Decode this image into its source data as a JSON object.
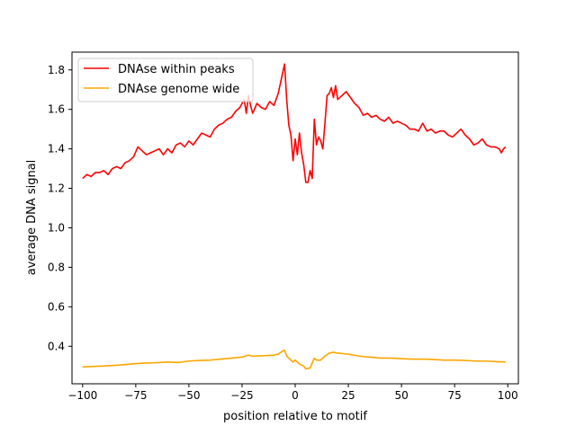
{
  "chart_data": {
    "type": "line",
    "title": "",
    "xlabel": "position relative to motif",
    "ylabel": "average DNA signal",
    "xlim": [
      -105,
      105
    ],
    "ylim": [
      0.21,
      1.89
    ],
    "x_ticks": [
      -100,
      -75,
      -50,
      -25,
      0,
      25,
      50,
      75,
      100
    ],
    "x_tick_labels": [
      "−100",
      "−75",
      "−50",
      "−25",
      "0",
      "25",
      "50",
      "75",
      "100"
    ],
    "y_ticks": [
      0.4,
      0.6,
      0.8,
      1.0,
      1.2,
      1.4,
      1.6,
      1.8
    ],
    "y_tick_labels": [
      "0.4",
      "0.6",
      "0.8",
      "1.0",
      "1.2",
      "1.4",
      "1.6",
      "1.8"
    ],
    "grid": false,
    "legend_position": "top-left",
    "series": [
      {
        "name": "DNAse within peaks",
        "color": "#ff0000",
        "points": [
          [
            -100,
            1.25
          ],
          [
            -98,
            1.27
          ],
          [
            -96,
            1.26
          ],
          [
            -94,
            1.28
          ],
          [
            -92,
            1.28
          ],
          [
            -90,
            1.29
          ],
          [
            -88,
            1.27
          ],
          [
            -86,
            1.3
          ],
          [
            -84,
            1.31
          ],
          [
            -82,
            1.3
          ],
          [
            -80,
            1.33
          ],
          [
            -78,
            1.34
          ],
          [
            -76,
            1.36
          ],
          [
            -74,
            1.41
          ],
          [
            -72,
            1.39
          ],
          [
            -70,
            1.37
          ],
          [
            -68,
            1.38
          ],
          [
            -66,
            1.39
          ],
          [
            -64,
            1.4
          ],
          [
            -62,
            1.37
          ],
          [
            -60,
            1.4
          ],
          [
            -58,
            1.38
          ],
          [
            -56,
            1.42
          ],
          [
            -54,
            1.43
          ],
          [
            -52,
            1.41
          ],
          [
            -50,
            1.44
          ],
          [
            -48,
            1.42
          ],
          [
            -46,
            1.45
          ],
          [
            -44,
            1.48
          ],
          [
            -42,
            1.47
          ],
          [
            -40,
            1.46
          ],
          [
            -38,
            1.5
          ],
          [
            -36,
            1.52
          ],
          [
            -34,
            1.53
          ],
          [
            -32,
            1.55
          ],
          [
            -30,
            1.56
          ],
          [
            -28,
            1.59
          ],
          [
            -26,
            1.61
          ],
          [
            -24,
            1.65
          ],
          [
            -23,
            1.58
          ],
          [
            -22,
            1.67
          ],
          [
            -21,
            1.62
          ],
          [
            -20,
            1.58
          ],
          [
            -18,
            1.63
          ],
          [
            -16,
            1.61
          ],
          [
            -14,
            1.6
          ],
          [
            -12,
            1.64
          ],
          [
            -10,
            1.62
          ],
          [
            -8,
            1.68
          ],
          [
            -6,
            1.78
          ],
          [
            -5,
            1.83
          ],
          [
            -4,
            1.65
          ],
          [
            -3,
            1.52
          ],
          [
            -2,
            1.47
          ],
          [
            -1,
            1.34
          ],
          [
            0,
            1.45
          ],
          [
            1,
            1.37
          ],
          [
            2,
            1.48
          ],
          [
            3,
            1.38
          ],
          [
            4,
            1.32
          ],
          [
            5,
            1.23
          ],
          [
            6,
            1.23
          ],
          [
            7,
            1.29
          ],
          [
            8,
            1.25
          ],
          [
            9,
            1.55
          ],
          [
            10,
            1.42
          ],
          [
            11,
            1.46
          ],
          [
            12,
            1.44
          ],
          [
            13,
            1.4
          ],
          [
            14,
            1.53
          ],
          [
            15,
            1.67
          ],
          [
            16,
            1.68
          ],
          [
            17,
            1.71
          ],
          [
            18,
            1.66
          ],
          [
            19,
            1.72
          ],
          [
            20,
            1.65
          ],
          [
            22,
            1.67
          ],
          [
            24,
            1.69
          ],
          [
            26,
            1.66
          ],
          [
            28,
            1.63
          ],
          [
            30,
            1.61
          ],
          [
            32,
            1.57
          ],
          [
            34,
            1.58
          ],
          [
            36,
            1.56
          ],
          [
            38,
            1.57
          ],
          [
            40,
            1.55
          ],
          [
            42,
            1.54
          ],
          [
            44,
            1.56
          ],
          [
            46,
            1.53
          ],
          [
            48,
            1.54
          ],
          [
            50,
            1.53
          ],
          [
            52,
            1.52
          ],
          [
            54,
            1.5
          ],
          [
            56,
            1.5
          ],
          [
            58,
            1.49
          ],
          [
            60,
            1.53
          ],
          [
            62,
            1.49
          ],
          [
            64,
            1.5
          ],
          [
            66,
            1.48
          ],
          [
            68,
            1.49
          ],
          [
            70,
            1.49
          ],
          [
            72,
            1.47
          ],
          [
            74,
            1.46
          ],
          [
            76,
            1.48
          ],
          [
            78,
            1.5
          ],
          [
            80,
            1.47
          ],
          [
            82,
            1.45
          ],
          [
            84,
            1.42
          ],
          [
            86,
            1.43
          ],
          [
            88,
            1.45
          ],
          [
            90,
            1.42
          ],
          [
            92,
            1.41
          ],
          [
            94,
            1.41
          ],
          [
            96,
            1.4
          ],
          [
            97,
            1.38
          ],
          [
            98,
            1.4
          ],
          [
            99,
            1.41
          ]
        ]
      },
      {
        "name": "DNAse genome wide",
        "color": "#ffa500",
        "points": [
          [
            -100,
            0.295
          ],
          [
            -95,
            0.298
          ],
          [
            -90,
            0.3
          ],
          [
            -85,
            0.303
          ],
          [
            -80,
            0.307
          ],
          [
            -75,
            0.312
          ],
          [
            -70,
            0.315
          ],
          [
            -65,
            0.317
          ],
          [
            -60,
            0.32
          ],
          [
            -55,
            0.318
          ],
          [
            -50,
            0.325
          ],
          [
            -45,
            0.328
          ],
          [
            -40,
            0.33
          ],
          [
            -35,
            0.335
          ],
          [
            -30,
            0.34
          ],
          [
            -25,
            0.345
          ],
          [
            -22,
            0.355
          ],
          [
            -20,
            0.35
          ],
          [
            -15,
            0.352
          ],
          [
            -10,
            0.355
          ],
          [
            -8,
            0.36
          ],
          [
            -6,
            0.375
          ],
          [
            -5,
            0.38
          ],
          [
            -4,
            0.35
          ],
          [
            -2,
            0.33
          ],
          [
            -1,
            0.32
          ],
          [
            0,
            0.33
          ],
          [
            2,
            0.31
          ],
          [
            4,
            0.3
          ],
          [
            5,
            0.285
          ],
          [
            7,
            0.29
          ],
          [
            9,
            0.34
          ],
          [
            10,
            0.33
          ],
          [
            12,
            0.33
          ],
          [
            14,
            0.35
          ],
          [
            16,
            0.365
          ],
          [
            18,
            0.37
          ],
          [
            20,
            0.365
          ],
          [
            25,
            0.36
          ],
          [
            30,
            0.35
          ],
          [
            35,
            0.345
          ],
          [
            40,
            0.34
          ],
          [
            45,
            0.34
          ],
          [
            50,
            0.337
          ],
          [
            55,
            0.335
          ],
          [
            60,
            0.335
          ],
          [
            65,
            0.333
          ],
          [
            70,
            0.33
          ],
          [
            75,
            0.33
          ],
          [
            80,
            0.328
          ],
          [
            85,
            0.325
          ],
          [
            90,
            0.325
          ],
          [
            95,
            0.322
          ],
          [
            99,
            0.32
          ]
        ]
      }
    ]
  }
}
